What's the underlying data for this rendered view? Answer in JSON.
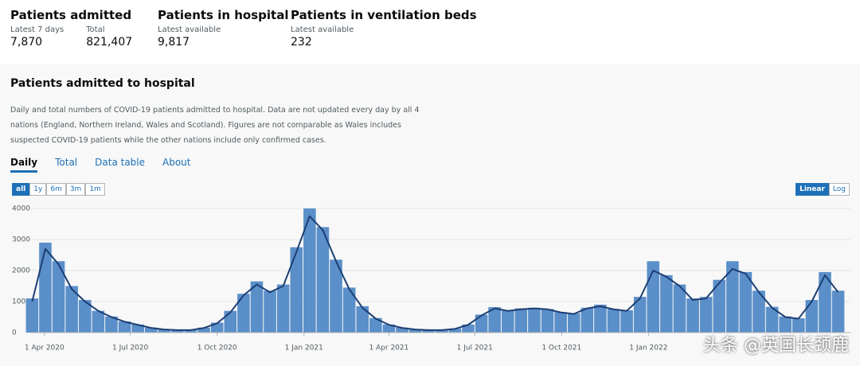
{
  "header": {
    "stats": [
      {
        "title": "Patients admitted",
        "items": [
          {
            "label": "Latest 7 days",
            "value": "7,870"
          },
          {
            "label": "Total",
            "value": "821,407"
          }
        ]
      },
      {
        "title": "Patients in hospital",
        "items": [
          {
            "label": "Latest available",
            "value": "9,817"
          }
        ]
      },
      {
        "title": "Patients in ventilation beds",
        "items": [
          {
            "label": "Latest available",
            "value": "232"
          }
        ]
      }
    ]
  },
  "card": {
    "title": "Patients admitted to hospital",
    "description": "Daily and total numbers of COVID-19 patients admitted to hospital. Data are not updated every day by all 4 nations (England, Northern Ireland, Wales and Scotland). Figures are not comparable as Wales includes suspected COVID-19 patients while the other nations include only confirmed cases.",
    "tabs": [
      "Daily",
      "Total",
      "Data table",
      "About"
    ],
    "active_tab": 0,
    "range_buttons": [
      "all",
      "1y",
      "6m",
      "3m",
      "1m"
    ],
    "active_range": 0,
    "scale_buttons": [
      "Linear",
      "Log"
    ],
    "active_scale": 0
  },
  "chart_data": {
    "type": "bar",
    "color": "#5b8fc9",
    "line_color": "#1d3f73",
    "log_scale": false,
    "x": [
      "2020-03-19",
      "2020-04-02",
      "2020-04-16",
      "2020-04-30",
      "2020-05-14",
      "2020-05-28",
      "2020-06-11",
      "2020-06-25",
      "2020-07-09",
      "2020-07-23",
      "2020-08-06",
      "2020-08-20",
      "2020-09-03",
      "2020-09-17",
      "2020-10-01",
      "2020-10-15",
      "2020-10-29",
      "2020-11-12",
      "2020-11-26",
      "2020-12-10",
      "2020-12-24",
      "2021-01-07",
      "2021-01-21",
      "2021-02-04",
      "2021-02-18",
      "2021-03-04",
      "2021-03-18",
      "2021-04-01",
      "2021-04-15",
      "2021-04-29",
      "2021-05-13",
      "2021-05-27",
      "2021-06-10",
      "2021-06-24",
      "2021-07-08",
      "2021-07-22",
      "2021-08-05",
      "2021-08-19",
      "2021-09-02",
      "2021-09-16",
      "2021-09-30",
      "2021-10-14",
      "2021-10-28",
      "2021-11-11",
      "2021-11-25",
      "2021-12-09",
      "2021-12-23",
      "2022-01-06",
      "2022-01-20",
      "2022-02-03",
      "2022-02-17",
      "2022-03-03",
      "2022-03-17",
      "2022-03-31",
      "2022-04-14",
      "2022-04-28",
      "2022-05-12",
      "2022-05-26",
      "2022-06-09",
      "2022-06-23",
      "2022-07-07",
      "2022-07-21"
    ],
    "values": [
      1100,
      2900,
      2300,
      1500,
      1050,
      700,
      520,
      360,
      260,
      160,
      110,
      90,
      90,
      160,
      320,
      700,
      1250,
      1650,
      1350,
      1550,
      2750,
      4000,
      3400,
      2350,
      1450,
      850,
      470,
      260,
      160,
      110,
      90,
      90,
      130,
      260,
      580,
      820,
      720,
      780,
      800,
      760,
      660,
      620,
      800,
      900,
      760,
      720,
      1150,
      2300,
      1850,
      1550,
      1100,
      1150,
      1700,
      2300,
      1950,
      1350,
      830,
      520,
      460,
      1050,
      1950,
      1350
    ],
    "average": [
      1000,
      2700,
      2200,
      1400,
      1000,
      700,
      500,
      350,
      250,
      150,
      100,
      80,
      80,
      150,
      300,
      650,
      1200,
      1550,
      1300,
      1500,
      2600,
      3750,
      3300,
      2300,
      1400,
      800,
      450,
      250,
      150,
      100,
      80,
      80,
      120,
      250,
      550,
      780,
      700,
      750,
      780,
      750,
      650,
      600,
      780,
      850,
      750,
      700,
      1100,
      2000,
      1800,
      1500,
      1050,
      1100,
      1600,
      2050,
      1900,
      1300,
      800,
      500,
      450,
      1000,
      1850,
      1300
    ],
    "xlim": [
      "2020-03-17",
      "2022-08-03"
    ],
    "xticks": [
      {
        "value": "2020-04-01",
        "label": "1 Apr 2020"
      },
      {
        "value": "2020-07-01",
        "label": "1 Jul 2020"
      },
      {
        "value": "2020-10-01",
        "label": "1 Oct 2020"
      },
      {
        "value": "2021-01-01",
        "label": "1 Jan 2021"
      },
      {
        "value": "2021-04-01",
        "label": "1 Apr 2021"
      },
      {
        "value": "2021-07-01",
        "label": "1 Jul 2021"
      },
      {
        "value": "2021-10-01",
        "label": "1 Oct 2021"
      },
      {
        "value": "2022-01-01",
        "label": "1 Jan 2022"
      }
    ],
    "ylim": [
      0,
      4000
    ],
    "yticks": [
      0,
      1000,
      2000,
      3000,
      4000
    ]
  },
  "watermark": "头条 @英国长颈鹿"
}
